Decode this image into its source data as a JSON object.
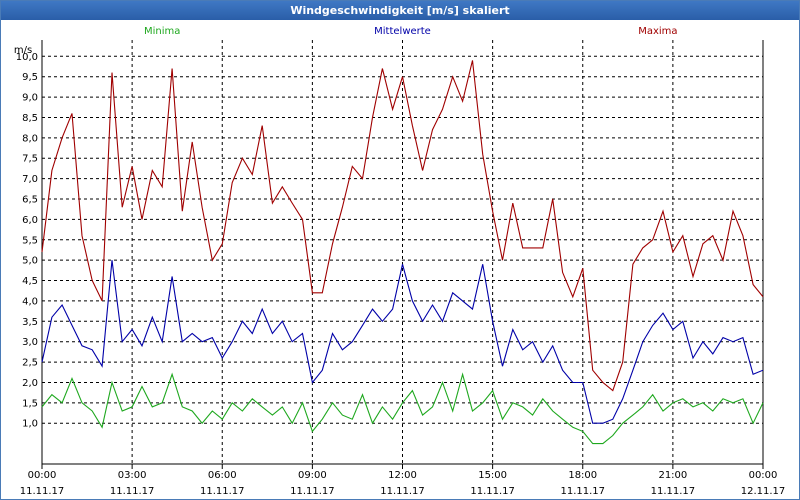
{
  "window": {
    "title": "Windgeschwindigkeit [m/s] skaliert"
  },
  "colors": {
    "minima": "#1fa81f",
    "mittel": "#0000a8",
    "maxima": "#a00000",
    "grid": "#000000",
    "title_bar": "#2f66b3"
  },
  "chart_data": {
    "type": "line",
    "title": "Windgeschwindigkeit [m/s] skaliert",
    "ylabel": "m/s",
    "ylim": [
      0,
      10.4
    ],
    "yticks": [
      1.0,
      1.5,
      2.0,
      2.5,
      3.0,
      3.5,
      4.0,
      4.5,
      5.0,
      5.5,
      6.0,
      6.5,
      7.0,
      7.5,
      8.0,
      8.5,
      9.0,
      9.5,
      10.0
    ],
    "ytick_labels": [
      "1,0",
      "1,5",
      "2,0",
      "2,5",
      "3,0",
      "3,5",
      "4,0",
      "4,5",
      "5,0",
      "5,5",
      "6,0",
      "6,5",
      "7,0",
      "7,5",
      "8,0",
      "8,5",
      "9,0",
      "9,5",
      "10,0"
    ],
    "xlim": [
      0,
      24
    ],
    "xticks": [
      {
        "hour": 0,
        "time": "00:00",
        "date": "11.11.17"
      },
      {
        "hour": 3,
        "time": "03:00",
        "date": "11.11.17"
      },
      {
        "hour": 6,
        "time": "06:00",
        "date": "11.11.17"
      },
      {
        "hour": 9,
        "time": "09:00",
        "date": "11.11.17"
      },
      {
        "hour": 12,
        "time": "12:00",
        "date": "11.11.17"
      },
      {
        "hour": 15,
        "time": "15:00",
        "date": "11.11.17"
      },
      {
        "hour": 18,
        "time": "18:00",
        "date": "11.11.17"
      },
      {
        "hour": 21,
        "time": "21:00",
        "date": "11.11.17"
      },
      {
        "hour": 24,
        "time": "00:00",
        "date": "12.11.17"
      }
    ],
    "series": [
      {
        "name": "Minima",
        "color": "#1fa81f",
        "points": [
          [
            0,
            1.4
          ],
          [
            0.33,
            1.7
          ],
          [
            0.67,
            1.5
          ],
          [
            1.0,
            2.1
          ],
          [
            1.33,
            1.5
          ],
          [
            1.67,
            1.3
          ],
          [
            2.0,
            0.9
          ],
          [
            2.33,
            2.0
          ],
          [
            2.67,
            1.3
          ],
          [
            3.0,
            1.4
          ],
          [
            3.33,
            1.9
          ],
          [
            3.67,
            1.4
          ],
          [
            4.0,
            1.5
          ],
          [
            4.33,
            2.2
          ],
          [
            4.67,
            1.4
          ],
          [
            5.0,
            1.3
          ],
          [
            5.33,
            1.0
          ],
          [
            5.67,
            1.3
          ],
          [
            6.0,
            1.1
          ],
          [
            6.33,
            1.5
          ],
          [
            6.67,
            1.3
          ],
          [
            7.0,
            1.6
          ],
          [
            7.33,
            1.4
          ],
          [
            7.67,
            1.2
          ],
          [
            8.0,
            1.4
          ],
          [
            8.33,
            1.0
          ],
          [
            8.67,
            1.5
          ],
          [
            9.0,
            0.8
          ],
          [
            9.33,
            1.1
          ],
          [
            9.67,
            1.5
          ],
          [
            10.0,
            1.2
          ],
          [
            10.33,
            1.1
          ],
          [
            10.67,
            1.7
          ],
          [
            11.0,
            1.0
          ],
          [
            11.33,
            1.4
          ],
          [
            11.67,
            1.1
          ],
          [
            12.0,
            1.5
          ],
          [
            12.33,
            1.8
          ],
          [
            12.67,
            1.2
          ],
          [
            13.0,
            1.4
          ],
          [
            13.33,
            2.0
          ],
          [
            13.67,
            1.3
          ],
          [
            14.0,
            2.2
          ],
          [
            14.33,
            1.3
          ],
          [
            14.67,
            1.5
          ],
          [
            15.0,
            1.8
          ],
          [
            15.33,
            1.1
          ],
          [
            15.67,
            1.5
          ],
          [
            16.0,
            1.4
          ],
          [
            16.33,
            1.2
          ],
          [
            16.67,
            1.6
          ],
          [
            17.0,
            1.3
          ],
          [
            17.33,
            1.1
          ],
          [
            17.67,
            0.9
          ],
          [
            18.0,
            0.8
          ],
          [
            18.33,
            0.5
          ],
          [
            18.67,
            0.5
          ],
          [
            19.0,
            0.7
          ],
          [
            19.33,
            1.0
          ],
          [
            19.67,
            1.2
          ],
          [
            20.0,
            1.4
          ],
          [
            20.33,
            1.7
          ],
          [
            20.67,
            1.3
          ],
          [
            21.0,
            1.5
          ],
          [
            21.33,
            1.6
          ],
          [
            21.67,
            1.4
          ],
          [
            22.0,
            1.5
          ],
          [
            22.33,
            1.3
          ],
          [
            22.67,
            1.6
          ],
          [
            23.0,
            1.5
          ],
          [
            23.33,
            1.6
          ],
          [
            23.67,
            1.0
          ],
          [
            24.0,
            1.5
          ]
        ]
      },
      {
        "name": "Mittelwerte",
        "color": "#0000a8",
        "points": [
          [
            0,
            2.5
          ],
          [
            0.33,
            3.6
          ],
          [
            0.67,
            3.9
          ],
          [
            1.0,
            3.4
          ],
          [
            1.33,
            2.9
          ],
          [
            1.67,
            2.8
          ],
          [
            2.0,
            2.4
          ],
          [
            2.33,
            5.0
          ],
          [
            2.67,
            3.0
          ],
          [
            3.0,
            3.3
          ],
          [
            3.33,
            2.9
          ],
          [
            3.67,
            3.6
          ],
          [
            4.0,
            3.0
          ],
          [
            4.33,
            4.6
          ],
          [
            4.67,
            3.0
          ],
          [
            5.0,
            3.2
          ],
          [
            5.33,
            3.0
          ],
          [
            5.67,
            3.1
          ],
          [
            6.0,
            2.6
          ],
          [
            6.33,
            3.0
          ],
          [
            6.67,
            3.5
          ],
          [
            7.0,
            3.2
          ],
          [
            7.33,
            3.8
          ],
          [
            7.67,
            3.2
          ],
          [
            8.0,
            3.5
          ],
          [
            8.33,
            3.0
          ],
          [
            8.67,
            3.2
          ],
          [
            9.0,
            2.0
          ],
          [
            9.33,
            2.3
          ],
          [
            9.67,
            3.2
          ],
          [
            10.0,
            2.8
          ],
          [
            10.33,
            3.0
          ],
          [
            10.67,
            3.4
          ],
          [
            11.0,
            3.8
          ],
          [
            11.33,
            3.5
          ],
          [
            11.67,
            3.8
          ],
          [
            12.0,
            4.9
          ],
          [
            12.33,
            4.0
          ],
          [
            12.67,
            3.5
          ],
          [
            13.0,
            3.9
          ],
          [
            13.33,
            3.5
          ],
          [
            13.67,
            4.2
          ],
          [
            14.0,
            4.0
          ],
          [
            14.33,
            3.8
          ],
          [
            14.67,
            4.9
          ],
          [
            15.0,
            3.5
          ],
          [
            15.33,
            2.4
          ],
          [
            15.67,
            3.3
          ],
          [
            16.0,
            2.8
          ],
          [
            16.33,
            3.0
          ],
          [
            16.67,
            2.5
          ],
          [
            17.0,
            2.9
          ],
          [
            17.33,
            2.3
          ],
          [
            17.67,
            2.0
          ],
          [
            18.0,
            2.0
          ],
          [
            18.33,
            1.0
          ],
          [
            18.67,
            1.0
          ],
          [
            19.0,
            1.1
          ],
          [
            19.33,
            1.6
          ],
          [
            19.67,
            2.3
          ],
          [
            20.0,
            3.0
          ],
          [
            20.33,
            3.4
          ],
          [
            20.67,
            3.7
          ],
          [
            21.0,
            3.3
          ],
          [
            21.33,
            3.5
          ],
          [
            21.67,
            2.6
          ],
          [
            22.0,
            3.0
          ],
          [
            22.33,
            2.7
          ],
          [
            22.67,
            3.1
          ],
          [
            23.0,
            3.0
          ],
          [
            23.33,
            3.1
          ],
          [
            23.67,
            2.2
          ],
          [
            24.0,
            2.3
          ]
        ]
      },
      {
        "name": "Maxima",
        "color": "#a00000",
        "points": [
          [
            0,
            5.2
          ],
          [
            0.33,
            7.2
          ],
          [
            0.67,
            8.0
          ],
          [
            1.0,
            8.6
          ],
          [
            1.33,
            5.6
          ],
          [
            1.67,
            4.5
          ],
          [
            2.0,
            4.0
          ],
          [
            2.33,
            9.6
          ],
          [
            2.67,
            6.3
          ],
          [
            3.0,
            7.3
          ],
          [
            3.33,
            6.0
          ],
          [
            3.67,
            7.2
          ],
          [
            4.0,
            6.8
          ],
          [
            4.33,
            9.7
          ],
          [
            4.67,
            6.2
          ],
          [
            5.0,
            7.9
          ],
          [
            5.33,
            6.3
          ],
          [
            5.67,
            5.0
          ],
          [
            6.0,
            5.4
          ],
          [
            6.33,
            6.9
          ],
          [
            6.67,
            7.5
          ],
          [
            7.0,
            7.1
          ],
          [
            7.33,
            8.3
          ],
          [
            7.67,
            6.4
          ],
          [
            8.0,
            6.8
          ],
          [
            8.33,
            6.4
          ],
          [
            8.67,
            6.0
          ],
          [
            9.0,
            4.2
          ],
          [
            9.33,
            4.2
          ],
          [
            9.67,
            5.4
          ],
          [
            10.0,
            6.3
          ],
          [
            10.33,
            7.3
          ],
          [
            10.67,
            7.0
          ],
          [
            11.0,
            8.5
          ],
          [
            11.33,
            9.7
          ],
          [
            11.67,
            8.7
          ],
          [
            12.0,
            9.5
          ],
          [
            12.33,
            8.3
          ],
          [
            12.67,
            7.2
          ],
          [
            13.0,
            8.2
          ],
          [
            13.33,
            8.7
          ],
          [
            13.67,
            9.5
          ],
          [
            14.0,
            8.9
          ],
          [
            14.33,
            9.9
          ],
          [
            14.67,
            7.6
          ],
          [
            15.0,
            6.2
          ],
          [
            15.33,
            5.0
          ],
          [
            15.67,
            6.4
          ],
          [
            16.0,
            5.3
          ],
          [
            16.33,
            5.3
          ],
          [
            16.67,
            5.3
          ],
          [
            17.0,
            6.5
          ],
          [
            17.33,
            4.7
          ],
          [
            17.67,
            4.1
          ],
          [
            18.0,
            4.8
          ],
          [
            18.33,
            2.3
          ],
          [
            18.67,
            2.0
          ],
          [
            19.0,
            1.8
          ],
          [
            19.33,
            2.5
          ],
          [
            19.67,
            4.9
          ],
          [
            20.0,
            5.3
          ],
          [
            20.33,
            5.5
          ],
          [
            20.67,
            6.2
          ],
          [
            21.0,
            5.2
          ],
          [
            21.33,
            5.6
          ],
          [
            21.67,
            4.6
          ],
          [
            22.0,
            5.4
          ],
          [
            22.33,
            5.6
          ],
          [
            22.67,
            5.0
          ],
          [
            23.0,
            6.2
          ],
          [
            23.33,
            5.6
          ],
          [
            23.67,
            4.4
          ],
          [
            24.0,
            4.1
          ]
        ]
      }
    ],
    "legend": [
      {
        "label": "Minima",
        "color": "#1fa81f",
        "position": "top-left"
      },
      {
        "label": "Mittelwerte",
        "color": "#0000a8",
        "position": "top-center"
      },
      {
        "label": "Maxima",
        "color": "#a00000",
        "position": "top-right"
      }
    ]
  }
}
